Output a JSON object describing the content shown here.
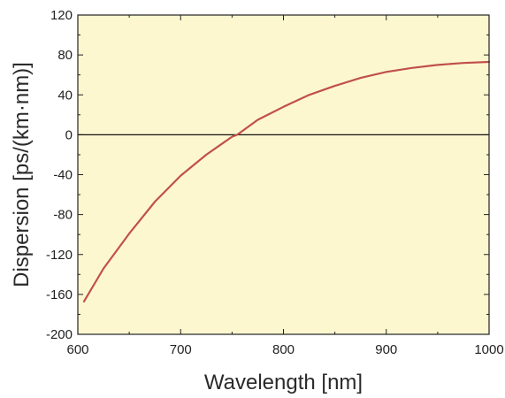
{
  "chart_data": {
    "type": "line",
    "title": "",
    "xlabel": "Wavelength [nm]",
    "ylabel": "Dispersion [ps/(km·nm)]",
    "xlim": [
      600,
      1000
    ],
    "ylim": [
      -200,
      120
    ],
    "x_ticks": [
      600,
      700,
      800,
      900,
      1000
    ],
    "y_ticks": [
      120,
      80,
      40,
      0,
      -40,
      -80,
      -120,
      -160,
      -200
    ],
    "x_tick_labels": [
      "600",
      "700",
      "800",
      "900",
      "1000"
    ],
    "y_tick_labels": [
      "120",
      "80",
      "40",
      "0",
      "-40",
      "-80",
      "-120",
      "-160",
      "-200"
    ],
    "grid": false,
    "legend": "none",
    "zero_line": true,
    "colors": {
      "plot_background": "#fdf7cf",
      "line": "#c0504a",
      "axis": "#222222",
      "zero_line": "#111111"
    },
    "series": [
      {
        "values": [
          [
            606,
            -167
          ],
          [
            625,
            -134
          ],
          [
            650,
            -99
          ],
          [
            675,
            -67
          ],
          [
            700,
            -41
          ],
          [
            725,
            -20
          ],
          [
            750,
            -2
          ],
          [
            755,
            0
          ],
          [
            775,
            15
          ],
          [
            800,
            28
          ],
          [
            825,
            40
          ],
          [
            850,
            49
          ],
          [
            875,
            57
          ],
          [
            900,
            63
          ],
          [
            925,
            67
          ],
          [
            950,
            70
          ],
          [
            975,
            72
          ],
          [
            1000,
            73
          ]
        ]
      }
    ]
  }
}
